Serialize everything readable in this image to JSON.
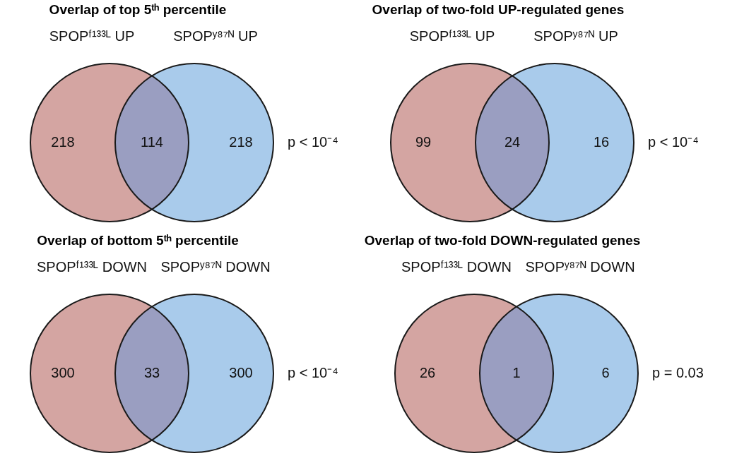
{
  "chart_data": [
    {
      "type": "other",
      "title": "Overlap of top 5ᵗʰ percentile",
      "categories": [
        "SPOPᶠ¹³³ᴸ UP",
        null,
        "SPOPʸ⁸⁷ᴺ UP"
      ],
      "values": [
        218,
        114,
        218
      ],
      "data_labels": true,
      "colors": [
        "#d4a5a2",
        "#9a9ec1",
        "#a9cbeb"
      ],
      "annotations": [
        "p < 10⁻⁴"
      ]
    },
    {
      "type": "other",
      "title": "Overlap of two-fold UP-regulated genes",
      "categories": [
        "SPOPᶠ¹³³ᴸ UP",
        null,
        "SPOPʸ⁸⁷ᴺ UP"
      ],
      "values": [
        99,
        24,
        16
      ],
      "data_labels": true,
      "colors": [
        "#d4a5a2",
        "#9a9ec1",
        "#a9cbeb"
      ],
      "annotations": [
        "p < 10⁻⁴"
      ]
    },
    {
      "type": "other",
      "title": "Overlap of bottom 5ᵗʰ percentile",
      "categories": [
        "SPOPᶠ¹³³ᴸ DOWN",
        null,
        "SPOPʸ⁸⁷ᴺ DOWN"
      ],
      "values": [
        300,
        33,
        300
      ],
      "data_labels": true,
      "colors": [
        "#d4a5a2",
        "#9a9ec1",
        "#a9cbeb"
      ],
      "annotations": [
        "p < 10⁻⁴"
      ]
    },
    {
      "type": "other",
      "title": "Overlap of two-fold DOWN-regulated genes",
      "categories": [
        "SPOPᶠ¹³³ᴸ DOWN",
        null,
        "SPOPʸ⁸⁷ᴺ DOWN"
      ],
      "values": [
        26,
        1,
        6
      ],
      "data_labels": true,
      "colors": [
        "#d4a5a2",
        "#9a9ec1",
        "#a9cbeb"
      ],
      "annotations": [
        "p = 0.03"
      ]
    }
  ]
}
